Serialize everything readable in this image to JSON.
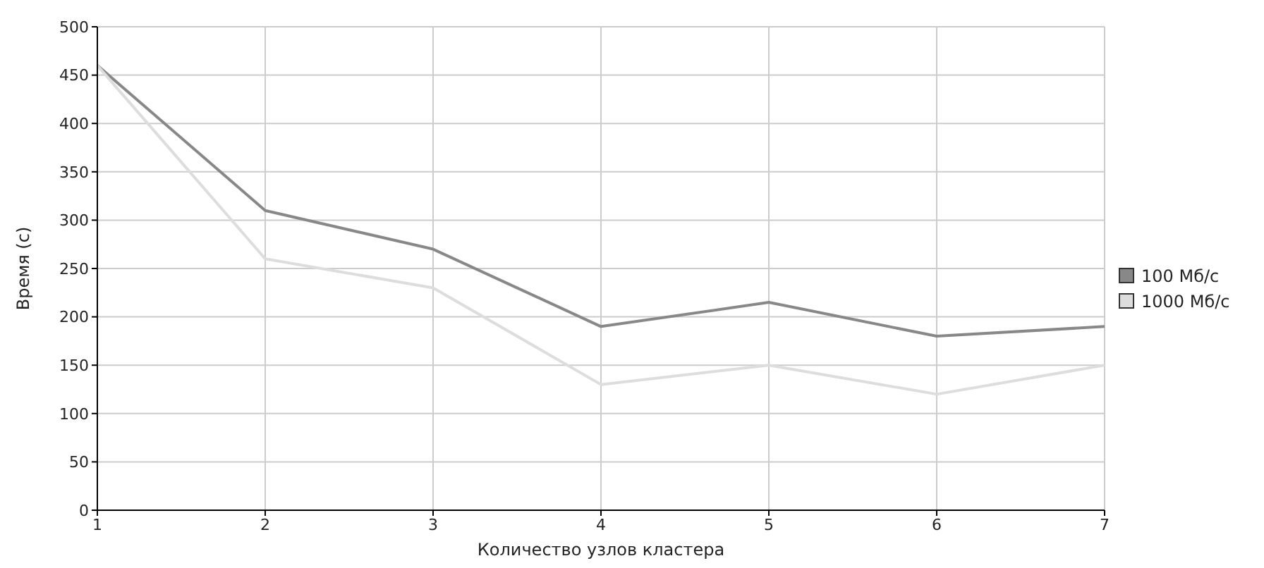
{
  "chart_data": {
    "type": "line",
    "xlabel": "Количество узлов кластера",
    "ylabel": "Время (с)",
    "x": [
      1,
      2,
      3,
      4,
      5,
      6,
      7
    ],
    "series": [
      {
        "name": "100 Мб/с",
        "color": "#888888",
        "values": [
          460,
          310,
          270,
          190,
          215,
          180,
          190
        ]
      },
      {
        "name": "1000 Мб/с",
        "color": "#dddddd",
        "values": [
          460,
          260,
          230,
          130,
          150,
          120,
          150
        ]
      }
    ],
    "xlim": [
      1,
      7
    ],
    "xticks": [
      1,
      2,
      3,
      4,
      5,
      6,
      7
    ],
    "ylim": [
      0,
      500
    ],
    "yticks": [
      0,
      50,
      100,
      150,
      200,
      250,
      300,
      350,
      400,
      450,
      500
    ],
    "grid": true,
    "legend": "right",
    "marker": "none",
    "line_style": "solid"
  }
}
